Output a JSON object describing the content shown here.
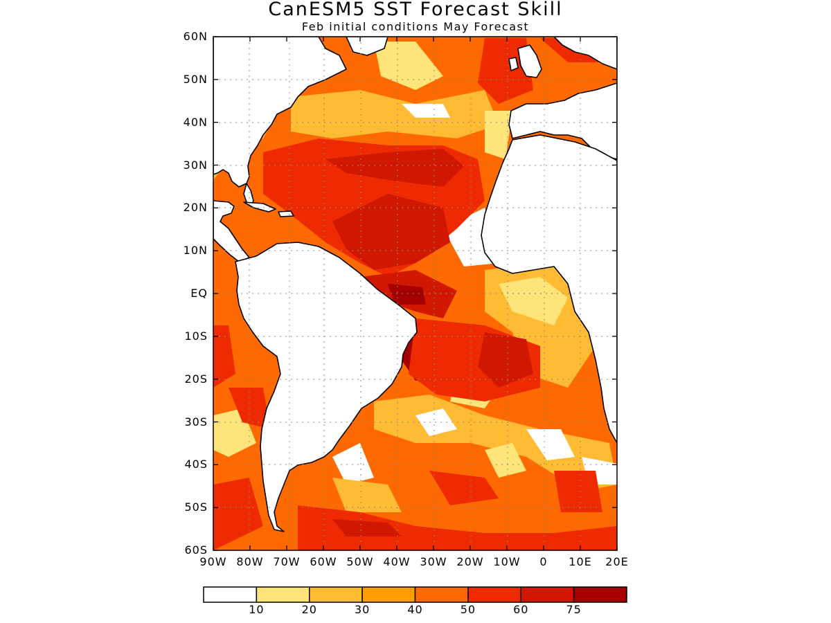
{
  "title": "CanESM5 SST Forecast Skill",
  "subtitle": "Feb initial conditions   May Forecast",
  "y_axis_labels": [
    "60N",
    "50N",
    "40N",
    "30N",
    "20N",
    "10N",
    "EQ",
    "10S",
    "20S",
    "30S",
    "40S",
    "50S",
    "60S"
  ],
  "x_axis_labels": [
    "90W",
    "80W",
    "70W",
    "60W",
    "50W",
    "40W",
    "30W",
    "20W",
    "10W",
    "0",
    "10E",
    "20E"
  ],
  "colorbar": {
    "labels": [
      "10",
      "20",
      "30",
      "40",
      "50",
      "60",
      "75"
    ],
    "colors": [
      "#ffffff",
      "#ffe479",
      "#ffbb33",
      "#ff9e00",
      "#ff6a00",
      "#ee2a00",
      "#d01800",
      "#a50000"
    ]
  }
}
